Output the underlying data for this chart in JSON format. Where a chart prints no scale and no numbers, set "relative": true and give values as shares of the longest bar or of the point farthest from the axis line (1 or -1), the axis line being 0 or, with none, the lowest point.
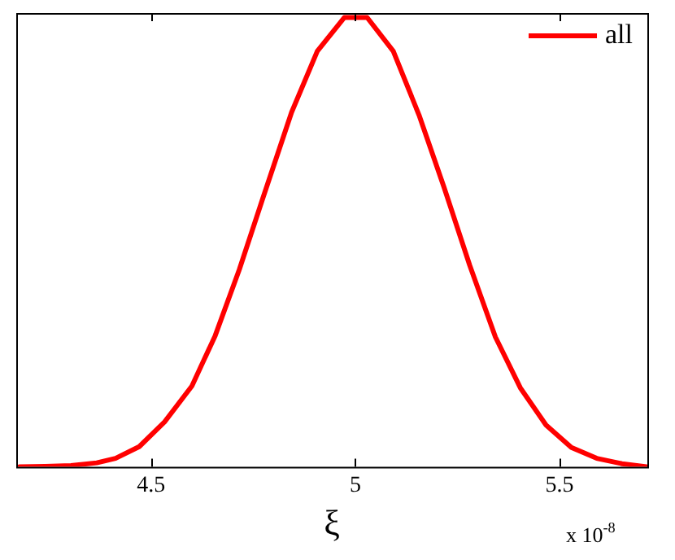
{
  "chart_data": {
    "type": "line",
    "xlabel": "ξ",
    "relative": true,
    "legend": "top right",
    "marker": "none",
    "line_style": "solid",
    "grid": false,
    "xlim": [
      4.17,
      5.715
    ],
    "xticks": [
      4.5,
      5,
      5.5
    ],
    "annotations": [
      "x 10$^{-8}$"
    ],
    "series": [
      {
        "name": "all",
        "color": "#ff0000",
        "x": [
          4.178,
          4.241,
          4.304,
          4.367,
          4.413,
          4.471,
          4.533,
          4.6,
          4.657,
          4.716,
          4.773,
          4.844,
          4.907,
          4.973,
          5.029,
          5.093,
          5.156,
          5.217,
          5.28,
          5.343,
          5.404,
          5.467,
          5.529,
          5.591,
          5.653,
          5.713
        ],
        "values": [
          0.0,
          0.001,
          0.003,
          0.009,
          0.019,
          0.045,
          0.1,
          0.18,
          0.292,
          0.439,
          0.596,
          0.789,
          0.925,
          1.0,
          1.0,
          0.925,
          0.783,
          0.623,
          0.449,
          0.289,
          0.176,
          0.093,
          0.043,
          0.019,
          0.007,
          0.0
        ]
      }
    ]
  }
}
